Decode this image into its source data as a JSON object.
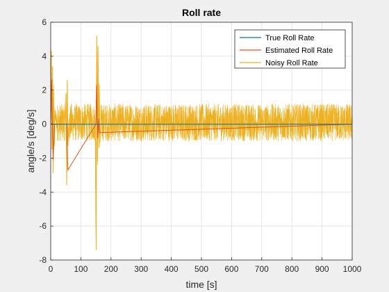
{
  "chart_data": {
    "type": "line",
    "title": "Roll rate",
    "xlabel": "time [s]",
    "ylabel": "angle/s [deg/s]",
    "xlim": [
      0,
      1000
    ],
    "ylim": [
      -8,
      6
    ],
    "xticks": [
      0,
      100,
      200,
      300,
      400,
      500,
      600,
      700,
      800,
      900,
      1000
    ],
    "yticks": [
      -8,
      -6,
      -4,
      -2,
      0,
      2,
      4,
      6
    ],
    "grid": true,
    "legend_position": "top-right",
    "series": [
      {
        "name": "True Roll Rate",
        "color": "#0072bd",
        "x": [
          0,
          150,
          152,
          160,
          1000
        ],
        "y": [
          0,
          0,
          0,
          0,
          0
        ]
      },
      {
        "name": "Estimated Roll Rate",
        "color": "#d95319",
        "x": [
          0,
          3,
          8,
          13,
          53,
          57,
          150,
          152,
          156,
          159,
          162,
          1000
        ],
        "y": [
          0,
          2.6,
          -2.1,
          0,
          0,
          -2.7,
          0,
          2.3,
          -0.8,
          0.3,
          -0.5,
          0
        ]
      },
      {
        "name": "Noisy Roll Rate",
        "color": "#edb120",
        "noise_band": [
          -1.0,
          1.2
        ],
        "x": [
          0,
          2,
          4,
          6,
          8,
          10,
          12,
          14,
          20,
          48,
          51,
          53,
          55,
          57,
          60,
          148,
          150,
          151,
          152,
          153,
          155,
          157,
          159,
          161,
          163,
          166,
          1000
        ],
        "y": [
          0,
          4.3,
          -1.5,
          3.4,
          -2.9,
          1.9,
          -1.2,
          0.6,
          0,
          0,
          1.8,
          -3.6,
          2.6,
          -1.3,
          0,
          0,
          -5.8,
          -7.4,
          2.6,
          5.2,
          -2.2,
          4.6,
          -1.4,
          2.3,
          -1.1,
          0,
          0
        ]
      }
    ]
  }
}
